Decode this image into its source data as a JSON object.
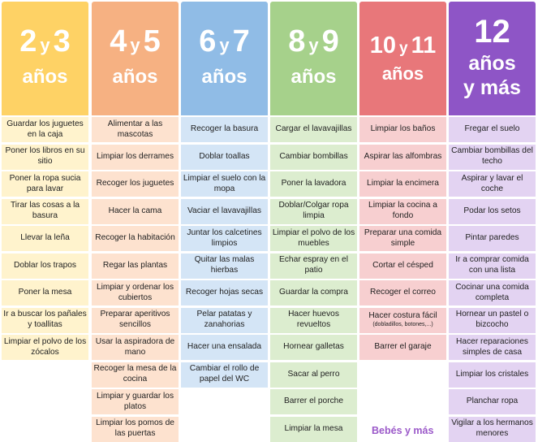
{
  "columns": [
    {
      "key": "c0",
      "num": "2",
      "y": "y",
      "num2": "3",
      "unit": "años",
      "head_color": "#fed265",
      "cell_color": "#fff3cd",
      "tasks": [
        "Guardar los juguetes en la caja",
        "Poner los libros en su sitio",
        "Poner la ropa sucia para lavar",
        "Tirar las cosas a la basura",
        "Llevar la leña",
        "Doblar los trapos",
        "Poner la mesa",
        "Ir a buscar los pañales y toallitas",
        "Limpiar el polvo de los zócalos"
      ]
    },
    {
      "key": "c1",
      "num": "4",
      "y": "y",
      "num2": "5",
      "unit": "años",
      "head_color": "#f6b182",
      "cell_color": "#fde2cf",
      "tasks": [
        "Alimentar a las mascotas",
        "Limpiar los derrames",
        "Recoger los juguetes",
        "Hacer la cama",
        "Recoger la habitación",
        "Regar las plantas",
        "Limpiar y ordenar los cubiertos",
        "Preparar aperitivos sencillos",
        "Usar la aspiradora de mano",
        "Recoger la mesa de la cocina",
        "Limpiar y guardar los platos",
        "Limpiar los pomos de las puertas"
      ]
    },
    {
      "key": "c2",
      "num": "6",
      "y": "y",
      "num2": "7",
      "unit": "años",
      "head_color": "#90bce6",
      "cell_color": "#d4e5f6",
      "tasks": [
        "Recoger la basura",
        "Doblar toallas",
        "Limpiar el suelo con la mopa",
        "Vaciar el lavavajillas",
        "Juntar los calcetines limpios",
        "Quitar las malas hierbas",
        "Recoger hojas secas",
        "Pelar patatas y zanahorias",
        "Hacer una ensalada",
        "Cambiar el rollo de papel del WC"
      ]
    },
    {
      "key": "c3",
      "num": "8",
      "y": "y",
      "num2": "9",
      "unit": "años",
      "head_color": "#a6d18b",
      "cell_color": "#dcedcf",
      "tasks": [
        "Cargar el lavavajillas",
        "Cambiar bombillas",
        "Poner la lavadora",
        "Doblar/Colgar ropa limpia",
        "Limpiar el polvo de los muebles",
        "Echar espray en el patio",
        "Guardar la compra",
        "Hacer huevos revueltos",
        "Hornear galletas",
        "Sacar al perro",
        "Barrer el porche",
        "Limpiar la mesa"
      ]
    },
    {
      "key": "c4",
      "num": "10",
      "y": "y",
      "num2": "11",
      "unit": "años",
      "head_color": "#e8777a",
      "cell_color": "#f7cfd0",
      "tasks": [
        "Limpiar los baños",
        "Aspirar las alfombras",
        "Limpiar la encimera",
        "Limpiar la cocina a fondo",
        "Preparar una comida simple",
        "Cortar el césped",
        "Recoger el correo",
        "Hacer costura fácil",
        "Barrer el garaje"
      ],
      "note": "(dobladillos, botones,...)"
    },
    {
      "key": "c5",
      "num": "12",
      "line2": "años",
      "line3": "y más",
      "head_color": "#8e55c6",
      "cell_color": "#e3d3f2",
      "tasks": [
        "Fregar el suelo",
        "Cambiar bombillas del techo",
        "Aspirar y lavar el coche",
        "Podar los setos",
        "Pintar paredes",
        "Ir a comprar comida con una lista",
        "Cocinar una comida completa",
        "Hornear un pastel o bizcocho",
        "Hacer reparaciones simples de casa",
        "Limpiar los cristales",
        "Planchar ropa",
        "Vigilar a los hermanos menores"
      ]
    }
  ],
  "brand": "Bebés y más"
}
